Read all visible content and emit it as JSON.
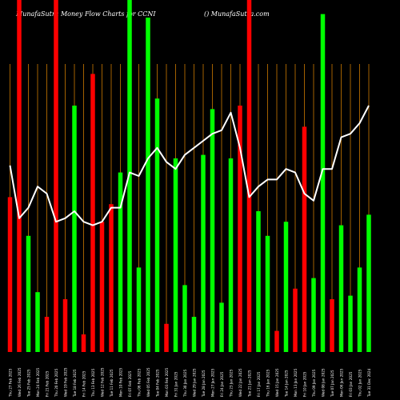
{
  "header": {
    "left": "MunafaSutra  Money Flow  Charts for CCNI",
    "right": "() MunafaSutra.com"
  },
  "colors": {
    "background": "#000000",
    "up": "#00ff00",
    "down": "#ff0000",
    "gridline": "#cc7a00",
    "line": "#ffffff",
    "tick_text": "#ffffff"
  },
  "chart_data": {
    "type": "bar",
    "title": "",
    "xlabel": "",
    "ylabel": "",
    "ylim": [
      0,
      100
    ],
    "grid": true,
    "legend": "none",
    "categories": [
      "Thu 27 Feb 2025",
      "Wed 26 Feb 2025",
      "Tue 25 Feb 2025",
      "Mon 24 Feb 2025",
      "Fri 21 Feb 2025",
      "Thu 20 Feb 2025",
      "Wed 19 Feb 2025",
      "Tue 18 Feb 2025",
      "Fri 14 Feb 2025",
      "Thu 13 Feb 2025",
      "Wed 12 Feb 2025",
      "Tue 11 Feb 2025",
      "Mon 10 Feb 2025",
      "Fri 07 Feb 2025",
      "Thu 06 Feb 2025",
      "Wed 05 Feb 2025",
      "Tue 04 Feb 2025",
      "Mon 03 Feb 2025",
      "Fri 31 Jan 2025",
      "Thu 30 Jan 2025",
      "Wed 29 Jan 2025",
      "Tue 28 Jan 2025",
      "Mon 27 Jan 2025",
      "Fri 24 Jan 2025",
      "Thu 23 Jan 2025",
      "Wed 22 Jan 2025",
      "Tue 21 Jan 2025",
      "Fri 17 Jan 2025",
      "Thu 16 Jan 2025",
      "Wed 15 Jan 2025",
      "Tue 14 Jan 2025",
      "Mon 13 Jan 2025",
      "Fri 10 Jan 2025",
      "Thu 09 Jan 2025",
      "Wed 08 Jan 2025",
      "Tue 07 Jan 2025",
      "Mon 06 Jan 2025",
      "Fri 03 Jan 2025",
      "Thu 02 Jan 2025",
      "Tue 31 Dec 2024"
    ],
    "series": [
      {
        "values": [
          44,
          100,
          33,
          17,
          10,
          100,
          15,
          70,
          5,
          79,
          37,
          42,
          51,
          100,
          24,
          95,
          72,
          8,
          55,
          19,
          10,
          56,
          69,
          14,
          55,
          70,
          100,
          40,
          33,
          6,
          37,
          18,
          64,
          21,
          96,
          15,
          36,
          16,
          24,
          39
        ],
        "direction": [
          "down",
          "down",
          "up",
          "up",
          "down",
          "down",
          "down",
          "up",
          "down",
          "down",
          "down",
          "down",
          "up",
          "up",
          "up",
          "up",
          "up",
          "down",
          "up",
          "up",
          "up",
          "up",
          "up",
          "up",
          "up",
          "down",
          "down",
          "up",
          "up",
          "down",
          "up",
          "down",
          "down",
          "up",
          "up",
          "down",
          "up",
          "up",
          "up",
          "up"
        ]
      },
      {
        "values": [
          53,
          38,
          41,
          47,
          45,
          37,
          38,
          40,
          37,
          36,
          37,
          41,
          41,
          51,
          50,
          55,
          58,
          54,
          52,
          56,
          58,
          60,
          62,
          63,
          68,
          58,
          44,
          47,
          49,
          49,
          52,
          51,
          45,
          43,
          52,
          52,
          61,
          62,
          65,
          70
        ]
      }
    ]
  }
}
